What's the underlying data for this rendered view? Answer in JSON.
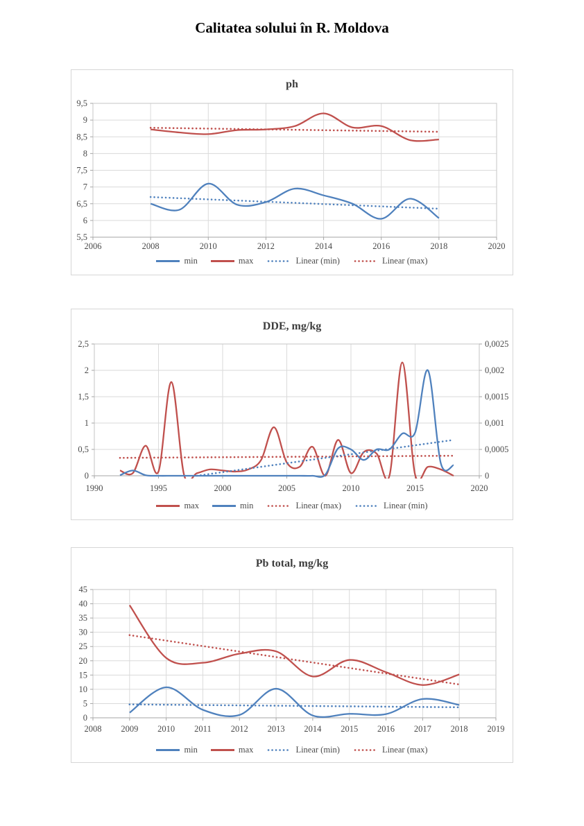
{
  "page": {
    "title": "Calitatea solului în R. Moldova"
  },
  "colors": {
    "min_series": "#4F81BD",
    "max_series": "#C0504D",
    "gridline": "#DADADA",
    "plot_border": "#C6C6C6",
    "axis_line": "#A6A6A6",
    "tick_label": "#4a4a4a"
  },
  "chart_data": [
    {
      "id": "ph",
      "type": "line",
      "title": "ph",
      "x_axis": {
        "range": [
          2006,
          2020
        ],
        "ticks": [
          2006,
          2008,
          2010,
          2012,
          2014,
          2016,
          2018,
          2020
        ],
        "labels": [
          "2006",
          "2008",
          "2010",
          "2012",
          "2014",
          "2016",
          "2018",
          "2020"
        ]
      },
      "y_axis": {
        "range": [
          5.5,
          9.5
        ],
        "ticks": [
          9.5,
          9,
          8.5,
          8,
          7.5,
          7,
          6.5,
          6,
          5.5
        ],
        "labels": [
          "9,5",
          "9",
          "8,5",
          "8",
          "7,5",
          "7",
          "6,5",
          "6",
          "5,5"
        ]
      },
      "legend": [
        "min",
        "max",
        "Linear (min)",
        "Linear (max)"
      ],
      "series": [
        {
          "name": "min",
          "style": "solid",
          "color": "#4F81BD",
          "x": [
            2008,
            2009,
            2010,
            2011,
            2012,
            2013,
            2014,
            2015,
            2016,
            2017,
            2018
          ],
          "y": [
            6.5,
            6.32,
            7.1,
            6.47,
            6.55,
            6.95,
            6.75,
            6.5,
            6.05,
            6.65,
            6.07
          ]
        },
        {
          "name": "max",
          "style": "solid",
          "color": "#C0504D",
          "x": [
            2008,
            2009,
            2010,
            2011,
            2012,
            2013,
            2014,
            2015,
            2016,
            2017,
            2018
          ],
          "y": [
            8.72,
            8.63,
            8.58,
            8.7,
            8.72,
            8.82,
            9.2,
            8.78,
            8.82,
            8.4,
            8.42
          ]
        },
        {
          "name": "Linear (min)",
          "style": "dotted",
          "color": "#4F81BD",
          "x": [
            2008,
            2018
          ],
          "y": [
            6.7,
            6.35
          ]
        },
        {
          "name": "Linear (max)",
          "style": "dotted",
          "color": "#C0504D",
          "x": [
            2008,
            2018
          ],
          "y": [
            8.77,
            8.65
          ]
        }
      ]
    },
    {
      "id": "dde",
      "type": "line",
      "title": "DDE, mg/kg",
      "x_axis": {
        "range": [
          1990,
          2020
        ],
        "ticks": [
          1990,
          1995,
          2000,
          2005,
          2010,
          2015,
          2020
        ],
        "labels": [
          "1990",
          "1995",
          "2000",
          "2005",
          "2010",
          "2015",
          "2020"
        ]
      },
      "y_axis": {
        "range": [
          0,
          2.5
        ],
        "ticks": [
          2.5,
          2,
          1.5,
          1,
          0.5,
          0
        ],
        "labels": [
          "2,5",
          "2",
          "1,5",
          "1",
          "0,5",
          "0"
        ]
      },
      "y2_axis": {
        "labels": [
          "0,0025",
          "0,002",
          "0,0015",
          "0,001",
          "0,0005",
          "0"
        ]
      },
      "legend": [
        "max",
        "min",
        "Linear (max)",
        "Linear (min)"
      ],
      "series": [
        {
          "name": "max",
          "style": "solid",
          "color": "#C0504D",
          "x": [
            1992,
            1993,
            1994,
            1995,
            1996,
            1997,
            1998,
            1999,
            2000,
            2001,
            2002,
            2003,
            2004,
            2005,
            2006,
            2007,
            2008,
            2009,
            2010,
            2011,
            2012,
            2013,
            2014,
            2015,
            2016,
            2017,
            2018
          ],
          "y": [
            0.1,
            0.05,
            0.57,
            0.08,
            1.78,
            0.01,
            0.05,
            0.12,
            0.1,
            0.08,
            0.12,
            0.3,
            0.92,
            0.25,
            0.17,
            0.55,
            0.0,
            0.68,
            0.05,
            0.45,
            0.42,
            0.0,
            2.15,
            0.02,
            0.17,
            0.12,
            0.0
          ]
        },
        {
          "name": "min",
          "style": "solid",
          "color": "#4F81BD",
          "x": [
            1992,
            1993,
            1994,
            1995,
            1996,
            1997,
            1998,
            1999,
            2000,
            2001,
            2002,
            2003,
            2004,
            2005,
            2006,
            2007,
            2008,
            2009,
            2010,
            2011,
            2012,
            2013,
            2014,
            2015,
            2016,
            2017,
            2018
          ],
          "y": [
            0.01,
            0.1,
            0.01,
            0,
            0,
            0,
            0,
            0,
            0,
            0,
            0,
            0,
            0,
            0,
            0,
            0,
            0.02,
            0.52,
            0.5,
            0.3,
            0.5,
            0.5,
            0.8,
            0.82,
            2.0,
            0.24,
            0.2
          ]
        },
        {
          "name": "Linear (max)",
          "style": "dotted",
          "color": "#C0504D",
          "x": [
            1992,
            2018
          ],
          "y": [
            0.34,
            0.38
          ]
        },
        {
          "name": "Linear (min)",
          "style": "dotted",
          "color": "#4F81BD",
          "x": [
            1998,
            2018
          ],
          "y": [
            0.0,
            0.68
          ]
        }
      ]
    },
    {
      "id": "pb",
      "type": "line",
      "title": "Pb total, mg/kg",
      "x_axis": {
        "range": [
          2008,
          2019
        ],
        "ticks": [
          2008,
          2009,
          2010,
          2011,
          2012,
          2013,
          2014,
          2015,
          2016,
          2017,
          2018,
          2019
        ],
        "labels": [
          "2008",
          "2009",
          "2010",
          "2011",
          "2012",
          "2013",
          "2014",
          "2015",
          "2016",
          "2017",
          "2018",
          "2019"
        ]
      },
      "y_axis": {
        "range": [
          0,
          45
        ],
        "ticks": [
          45,
          40,
          35,
          30,
          25,
          20,
          15,
          10,
          5,
          0
        ],
        "labels": [
          "45",
          "40",
          "35",
          "30",
          "25",
          "20",
          "15",
          "10",
          "5",
          "0"
        ]
      },
      "legend": [
        "min",
        "max",
        "Linear (min)",
        "Linear (max)"
      ],
      "series": [
        {
          "name": "min",
          "style": "solid",
          "color": "#4F81BD",
          "x": [
            2009,
            2010,
            2011,
            2012,
            2013,
            2014,
            2015,
            2016,
            2017,
            2018
          ],
          "y": [
            1.8,
            10.7,
            2.8,
            1.0,
            10.2,
            0.8,
            1.4,
            1.3,
            6.6,
            4.5
          ]
        },
        {
          "name": "max",
          "style": "solid",
          "color": "#C0504D",
          "x": [
            2009,
            2010,
            2011,
            2012,
            2013,
            2014,
            2015,
            2016,
            2017,
            2018
          ],
          "y": [
            39.5,
            21.0,
            19.3,
            22.5,
            23.3,
            14.5,
            20.3,
            16.0,
            11.5,
            15.2
          ]
        },
        {
          "name": "Linear (min)",
          "style": "dotted",
          "color": "#4F81BD",
          "x": [
            2009,
            2018
          ],
          "y": [
            4.7,
            3.7
          ]
        },
        {
          "name": "Linear (max)",
          "style": "dotted",
          "color": "#C0504D",
          "x": [
            2009,
            2018
          ],
          "y": [
            29.0,
            11.7
          ]
        }
      ]
    }
  ]
}
